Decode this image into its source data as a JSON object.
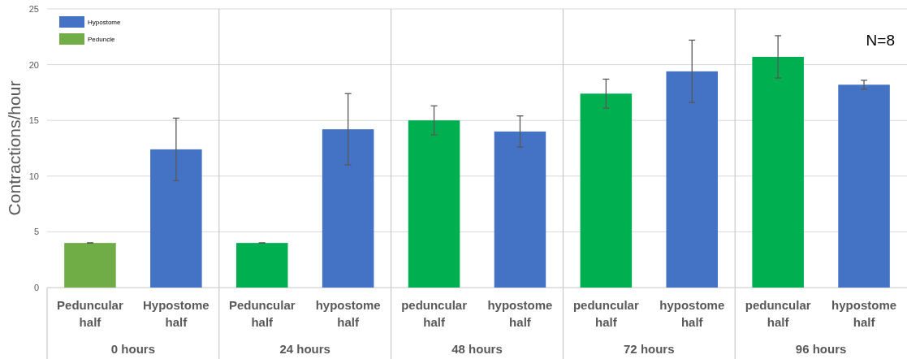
{
  "chart_data": {
    "type": "bar",
    "ylabel": "Contractions/hour",
    "categories": [
      "Peduncular half",
      "Hypostome half",
      "Peduncular half",
      "hypostome half",
      "peduncular half",
      "hypostome half",
      "peduncular half",
      "hypostome half",
      "peduncular half",
      "hypostome half"
    ],
    "series": [
      {
        "name": "Hypostome",
        "color": "#4472c4",
        "values": [
          null,
          12.4,
          null,
          14.2,
          null,
          14.0,
          null,
          19.4,
          null,
          18.2
        ],
        "errors": [
          null,
          2.8,
          null,
          3.2,
          null,
          1.4,
          null,
          2.8,
          null,
          0.4
        ]
      },
      {
        "name": "Peduncle",
        "color": "#70ad47",
        "colors": [
          "#70ad47",
          null,
          "#00b050",
          null,
          "#00b050",
          null,
          "#00b050",
          null,
          "#00b050",
          null
        ],
        "values": [
          4.0,
          null,
          4.0,
          null,
          15.0,
          null,
          17.4,
          null,
          20.7,
          null
        ],
        "errors": [
          0,
          null,
          0,
          null,
          1.3,
          null,
          1.3,
          null,
          1.9,
          null
        ]
      }
    ],
    "ylim": [
      0,
      25
    ],
    "yticks": [
      0,
      5,
      10,
      15,
      20,
      25
    ],
    "grid": "y",
    "legend": "top left",
    "annotations": [
      "N=8",
      "0 hours",
      "24 hours",
      "48 hours",
      "72 hours",
      "96 hours"
    ]
  }
}
